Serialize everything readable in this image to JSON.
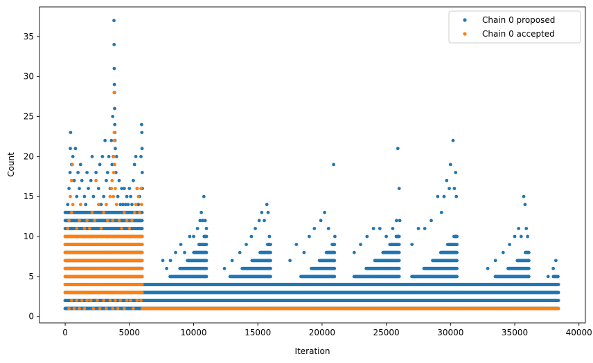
{
  "chart_data": {
    "type": "scatter",
    "title": "",
    "xlabel": "Iteration",
    "ylabel": "Count",
    "xlim": [
      -2000,
      40500
    ],
    "ylim": [
      -0.8,
      38.7
    ],
    "xticks": [
      0,
      5000,
      10000,
      15000,
      20000,
      25000,
      30000,
      35000,
      40000
    ],
    "yticks": [
      0,
      5,
      10,
      15,
      20,
      25,
      30,
      35
    ],
    "legend_position": "top-right",
    "grid": false,
    "series": [
      {
        "name": "Chain 0 proposed",
        "color": "#1f77b4",
        "band": {
          "x_start": 0,
          "x_end": 38400
        },
        "segments": [
          {
            "x_start": 0,
            "x_end": 6000,
            "step": 45,
            "min": 1,
            "max": 13
          },
          {
            "x_start": 6000,
            "x_end": 38400,
            "step": 45,
            "min": 1,
            "max": 4
          }
        ],
        "bursts": [
          {
            "x_start": 7400,
            "x_end": 11000,
            "peak_x": 11000,
            "peak_y": 10
          },
          {
            "x_start": 11800,
            "x_end": 16000,
            "peak_x": 15800,
            "peak_y": 9
          },
          {
            "x_start": 17500,
            "x_end": 21000,
            "peak_x": 21000,
            "peak_y": 9
          },
          {
            "x_start": 21500,
            "x_end": 26000,
            "peak_x": 26000,
            "peak_y": 10
          },
          {
            "x_start": 26000,
            "x_end": 30500,
            "peak_x": 30500,
            "peak_y": 10
          },
          {
            "x_start": 32500,
            "x_end": 36100,
            "peak_x": 36100,
            "peak_y": 8
          },
          {
            "x_start": 37200,
            "x_end": 38400,
            "peak_x": 38300,
            "peak_y": 5
          }
        ],
        "points": [
          [
            200,
            14
          ],
          [
            300,
            16
          ],
          [
            380,
            18
          ],
          [
            400,
            21
          ],
          [
            420,
            23
          ],
          [
            500,
            19
          ],
          [
            600,
            20
          ],
          [
            700,
            17
          ],
          [
            800,
            21
          ],
          [
            900,
            15
          ],
          [
            1000,
            18
          ],
          [
            1100,
            16
          ],
          [
            1200,
            19
          ],
          [
            1300,
            17
          ],
          [
            1500,
            15
          ],
          [
            1600,
            14
          ],
          [
            1700,
            18
          ],
          [
            1800,
            16
          ],
          [
            2000,
            17
          ],
          [
            2100,
            20
          ],
          [
            2200,
            15
          ],
          [
            2400,
            18
          ],
          [
            2600,
            16
          ],
          [
            2700,
            19
          ],
          [
            2800,
            14
          ],
          [
            2900,
            20
          ],
          [
            3000,
            15
          ],
          [
            3100,
            22
          ],
          [
            3200,
            17
          ],
          [
            3300,
            18
          ],
          [
            3400,
            20
          ],
          [
            3500,
            16
          ],
          [
            3600,
            22
          ],
          [
            3650,
            19
          ],
          [
            3700,
            25
          ],
          [
            3750,
            20
          ],
          [
            3800,
            37
          ],
          [
            3810,
            34
          ],
          [
            3820,
            31
          ],
          [
            3830,
            29
          ],
          [
            3840,
            28
          ],
          [
            3850,
            26
          ],
          [
            3860,
            24
          ],
          [
            3870,
            23
          ],
          [
            3880,
            22
          ],
          [
            3900,
            21
          ],
          [
            3950,
            18
          ],
          [
            4000,
            20
          ],
          [
            4100,
            15
          ],
          [
            4200,
            17
          ],
          [
            4300,
            14
          ],
          [
            4400,
            16
          ],
          [
            4500,
            14
          ],
          [
            4600,
            16
          ],
          [
            4700,
            14
          ],
          [
            4800,
            15
          ],
          [
            4900,
            14
          ],
          [
            5000,
            16
          ],
          [
            5100,
            15
          ],
          [
            5200,
            14
          ],
          [
            5300,
            17
          ],
          [
            5400,
            19
          ],
          [
            5500,
            20
          ],
          [
            5600,
            16
          ],
          [
            5700,
            14
          ],
          [
            5800,
            15
          ],
          [
            5900,
            20
          ],
          [
            5950,
            24
          ],
          [
            5970,
            23
          ],
          [
            5990,
            21
          ],
          [
            6000,
            18
          ],
          [
            6010,
            16
          ],
          [
            7600,
            7
          ],
          [
            7900,
            6
          ],
          [
            8200,
            7
          ],
          [
            8600,
            8
          ],
          [
            9000,
            9
          ],
          [
            9300,
            8
          ],
          [
            9700,
            10
          ],
          [
            10000,
            10
          ],
          [
            10300,
            11
          ],
          [
            10500,
            12
          ],
          [
            10600,
            13
          ],
          [
            10700,
            12
          ],
          [
            10800,
            15
          ],
          [
            10900,
            12
          ],
          [
            11000,
            11
          ],
          [
            12400,
            6
          ],
          [
            13000,
            7
          ],
          [
            13600,
            8
          ],
          [
            14100,
            9
          ],
          [
            14500,
            10
          ],
          [
            14800,
            11
          ],
          [
            15100,
            12
          ],
          [
            15300,
            13
          ],
          [
            15500,
            12
          ],
          [
            15700,
            14
          ],
          [
            15800,
            13
          ],
          [
            15900,
            10
          ],
          [
            17500,
            7
          ],
          [
            18000,
            9
          ],
          [
            18600,
            8
          ],
          [
            19000,
            10
          ],
          [
            19400,
            11
          ],
          [
            19900,
            12
          ],
          [
            20200,
            13
          ],
          [
            20500,
            11
          ],
          [
            20900,
            19
          ],
          [
            21000,
            10
          ],
          [
            22500,
            8
          ],
          [
            23000,
            9
          ],
          [
            23500,
            10
          ],
          [
            24000,
            11
          ],
          [
            24500,
            11
          ],
          [
            25000,
            10
          ],
          [
            25500,
            11
          ],
          [
            25800,
            12
          ],
          [
            25900,
            21
          ],
          [
            26000,
            16
          ],
          [
            26050,
            12
          ],
          [
            27000,
            9
          ],
          [
            27500,
            11
          ],
          [
            28000,
            11
          ],
          [
            28500,
            12
          ],
          [
            29000,
            15
          ],
          [
            29300,
            13
          ],
          [
            29500,
            15
          ],
          [
            29700,
            17
          ],
          [
            29900,
            16
          ],
          [
            30000,
            19
          ],
          [
            30200,
            22
          ],
          [
            30300,
            16
          ],
          [
            30400,
            18
          ],
          [
            30450,
            15
          ],
          [
            32900,
            6
          ],
          [
            33500,
            7
          ],
          [
            34100,
            8
          ],
          [
            34600,
            9
          ],
          [
            35000,
            10
          ],
          [
            35300,
            11
          ],
          [
            35500,
            10
          ],
          [
            35700,
            15
          ],
          [
            35800,
            14
          ],
          [
            35900,
            11
          ],
          [
            36000,
            10
          ],
          [
            37300,
            4
          ],
          [
            37600,
            5
          ],
          [
            38000,
            6
          ],
          [
            38200,
            7
          ],
          [
            38300,
            5
          ]
        ]
      },
      {
        "name": "Chain 0 accepted",
        "color": "#ff7f0e",
        "band": {
          "x_start": 6000,
          "x_end": 38400,
          "y": 1
        },
        "segments": [
          {
            "x_start": 0,
            "x_end": 6000,
            "step": 40,
            "min": 3,
            "max": 10
          }
        ],
        "points": [
          [
            300,
            1
          ],
          [
            500,
            2
          ],
          [
            700,
            1
          ],
          [
            900,
            2
          ],
          [
            1100,
            1
          ],
          [
            1300,
            2
          ],
          [
            1500,
            1
          ],
          [
            1700,
            2
          ],
          [
            2000,
            2
          ],
          [
            2200,
            1
          ],
          [
            2500,
            2
          ],
          [
            2700,
            1
          ],
          [
            3000,
            2
          ],
          [
            3200,
            1
          ],
          [
            3500,
            2
          ],
          [
            3700,
            1
          ],
          [
            3900,
            2
          ],
          [
            4100,
            1
          ],
          [
            4300,
            2
          ],
          [
            4600,
            1
          ],
          [
            4800,
            2
          ],
          [
            5100,
            2
          ],
          [
            5300,
            1
          ],
          [
            5600,
            2
          ],
          [
            5900,
            2
          ],
          [
            200,
            11
          ],
          [
            300,
            12
          ],
          [
            500,
            13
          ],
          [
            600,
            14
          ],
          [
            400,
            15
          ],
          [
            900,
            11
          ],
          [
            1100,
            12
          ],
          [
            1200,
            14
          ],
          [
            1500,
            11
          ],
          [
            1700,
            12
          ],
          [
            1900,
            11
          ],
          [
            2100,
            13
          ],
          [
            2300,
            12
          ],
          [
            2600,
            14
          ],
          [
            2800,
            11
          ],
          [
            3000,
            13
          ],
          [
            3200,
            14
          ],
          [
            3300,
            12
          ],
          [
            3500,
            15
          ],
          [
            3600,
            16
          ],
          [
            3650,
            17
          ],
          [
            3700,
            12
          ],
          [
            3750,
            15
          ],
          [
            3780,
            18
          ],
          [
            3800,
            20
          ],
          [
            3810,
            28
          ],
          [
            3820,
            23
          ],
          [
            3830,
            22
          ],
          [
            3850,
            19
          ],
          [
            3900,
            16
          ],
          [
            4000,
            14
          ],
          [
            4200,
            12
          ],
          [
            4400,
            11
          ],
          [
            4600,
            13
          ],
          [
            4800,
            12
          ],
          [
            5000,
            11
          ],
          [
            5200,
            12
          ],
          [
            5400,
            13
          ],
          [
            5500,
            14
          ],
          [
            5600,
            16
          ],
          [
            5700,
            15
          ],
          [
            5800,
            13
          ],
          [
            5900,
            16
          ],
          [
            5950,
            14
          ],
          [
            500,
            17
          ],
          [
            560,
            19
          ],
          [
            2400,
            17
          ]
        ]
      }
    ]
  }
}
